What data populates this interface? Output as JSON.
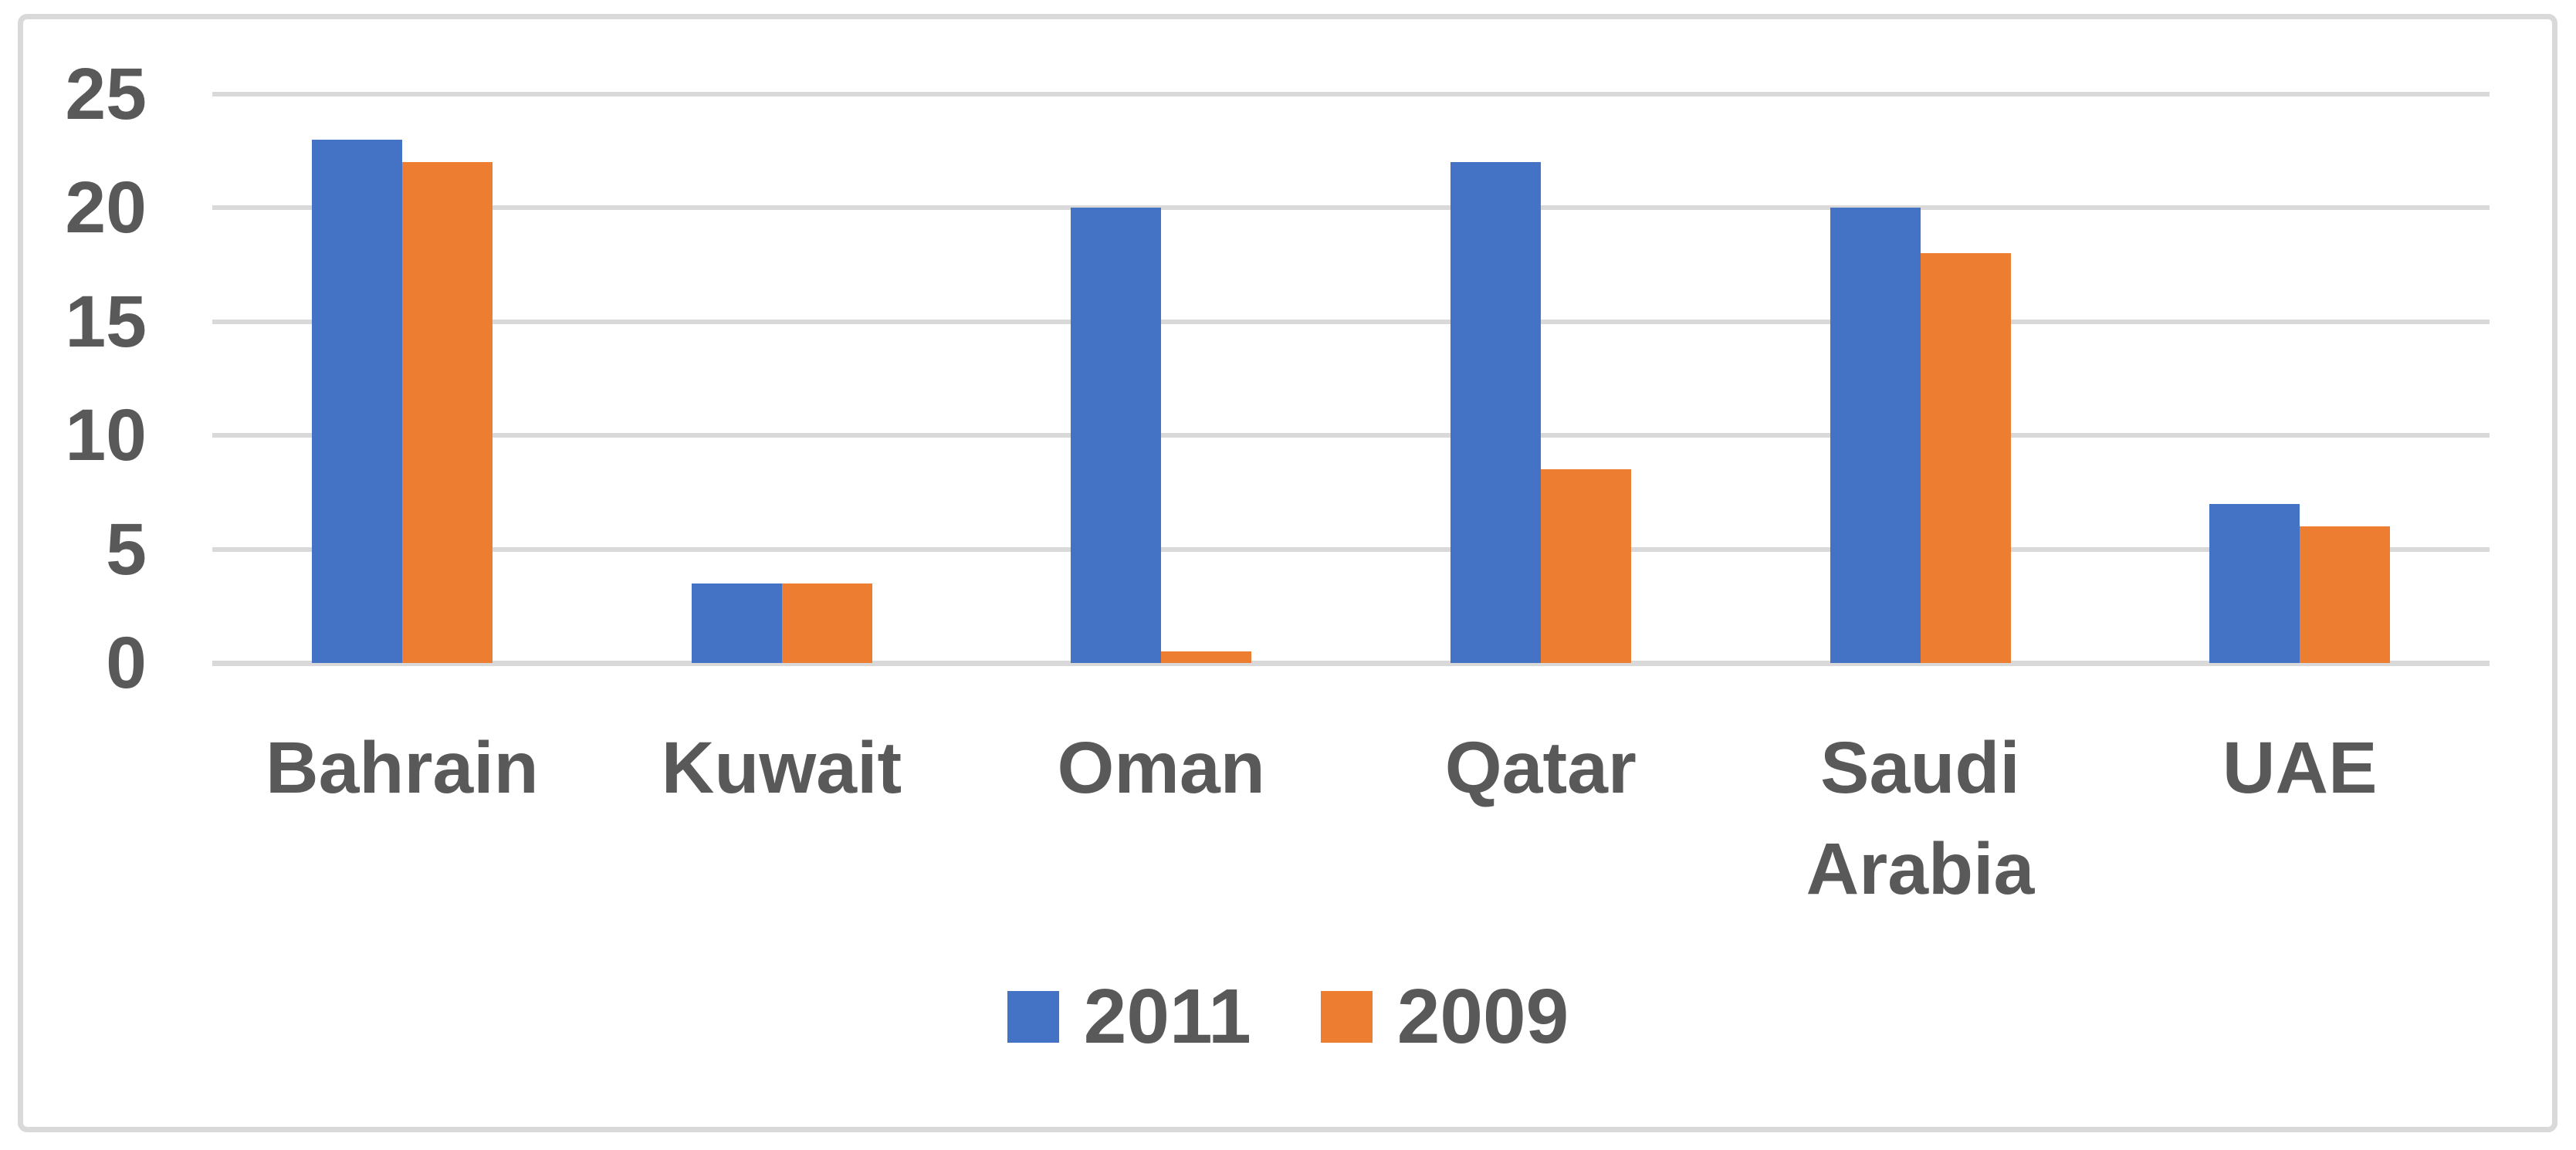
{
  "chart_data": {
    "type": "bar",
    "categories": [
      "Bahrain",
      "Kuwait",
      "Oman",
      "Qatar",
      "Saudi Arabia",
      "UAE"
    ],
    "series": [
      {
        "name": "2011",
        "color": "#4472C4",
        "values": [
          23,
          3.5,
          20,
          22,
          20,
          7
        ]
      },
      {
        "name": "2009",
        "color": "#ED7D31",
        "values": [
          22,
          3.5,
          0.5,
          8.5,
          18,
          6
        ]
      }
    ],
    "title": "",
    "xlabel": "",
    "ylabel": "",
    "y_axis": {
      "min": 0,
      "max": 25,
      "tick_interval": 5,
      "ticks": [
        25,
        20,
        15,
        10,
        5,
        0
      ]
    },
    "grid": "horizontal-only",
    "legend_position": "bottom-center",
    "legend": [
      "2011",
      "2009"
    ]
  },
  "colors": {
    "bar_2011": "#4472C4",
    "bar_2009": "#ED7D31",
    "text": "#595959",
    "gridline": "#D9D9D9",
    "frame_border": "#D9D9D9",
    "background": "#FFFFFF"
  }
}
